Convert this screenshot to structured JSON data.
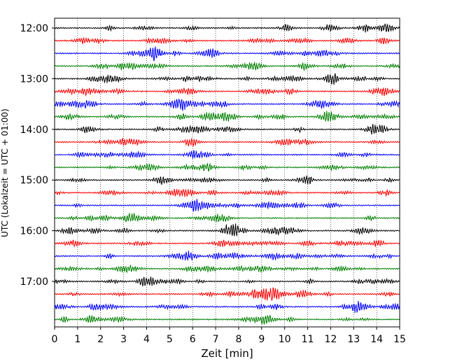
{
  "chart_data": {
    "type": "line",
    "title": "",
    "xlabel": "Zeit  [min]",
    "ylabel": "UTC (Lokalzeit = UTC + 01:00)",
    "xlim": [
      0,
      15
    ],
    "x_ticks": [
      0,
      1,
      2,
      3,
      4,
      5,
      6,
      7,
      8,
      9,
      10,
      11,
      12,
      13,
      14,
      15
    ],
    "x_tick_labels": [
      "0",
      "1",
      "2",
      "3",
      "4",
      "5",
      "6",
      "7",
      "8",
      "9",
      "10",
      "11",
      "12",
      "13",
      "14",
      "15"
    ],
    "y_tick_labels": [
      "12:00",
      "13:00",
      "14:00",
      "15:00",
      "16:00",
      "17:00"
    ],
    "vertical_grid": true,
    "grid_style": "dotted",
    "trace_start_times": [
      "12:00",
      "12:15",
      "12:30",
      "12:45",
      "13:00",
      "13:15",
      "13:30",
      "13:45",
      "14:00",
      "14:15",
      "14:30",
      "14:45",
      "15:00",
      "15:15",
      "15:30",
      "15:45",
      "16:00",
      "16:15",
      "16:30",
      "16:45",
      "17:00",
      "17:15",
      "17:30",
      "17:45"
    ],
    "trace_colors": [
      "#000000",
      "#ff0000",
      "#0000ff",
      "#008000"
    ],
    "trace_duration_min": 15
  }
}
